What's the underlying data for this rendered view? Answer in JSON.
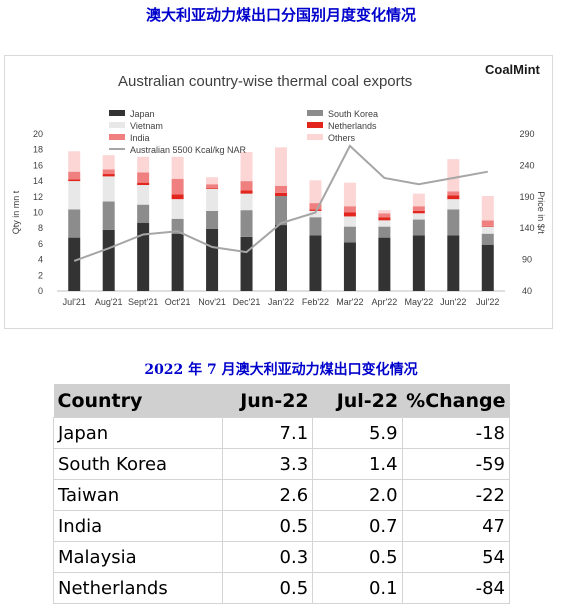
{
  "page": {
    "title": "澳大利亚动力煤出口分国别月度变化情况",
    "table_title": "2022 年 7 月澳大利亚动力煤出口变化情况"
  },
  "chart_data": {
    "type": "bar",
    "stacked": true,
    "title": "Australian country-wise thermal coal exports",
    "brand": "CoalMint",
    "ylabel": "Qty in mn t",
    "y2label": "Price in $/t",
    "ylim": [
      0,
      20
    ],
    "y2lim": [
      40,
      290
    ],
    "yticks": [
      0,
      2,
      4,
      6,
      8,
      10,
      12,
      14,
      16,
      18,
      20
    ],
    "y2ticks": [
      40,
      90,
      140,
      190,
      240,
      290
    ],
    "categories": [
      "Jul'21",
      "Aug'21",
      "Sept'21",
      "Oct'21",
      "Nov'21",
      "Dec'21",
      "Jan'22",
      "Feb'22",
      "Mar'22",
      "Apr'22",
      "May'22",
      "Jun'22",
      "Jul'22"
    ],
    "series": [
      {
        "name": "Japan",
        "color": "#333333",
        "values": [
          6.8,
          7.8,
          8.7,
          7.3,
          7.9,
          6.9,
          8.4,
          7.1,
          6.2,
          6.8,
          7.1,
          7.1,
          5.9
        ]
      },
      {
        "name": "South Korea",
        "color": "#8c8c8c",
        "values": [
          3.6,
          3.6,
          2.3,
          1.9,
          2.3,
          3.4,
          3.7,
          2.3,
          2.0,
          1.4,
          2.0,
          3.3,
          1.4
        ]
      },
      {
        "name": "Vietnam",
        "color": "#e8e8e8",
        "values": [
          3.6,
          3.2,
          2.5,
          2.5,
          2.8,
          2.1,
          0.0,
          0.8,
          1.3,
          0.8,
          0.8,
          1.3,
          0.9
        ]
      },
      {
        "name": "Netherlands",
        "color": "#e2261d",
        "values": [
          0.2,
          0.3,
          0.3,
          0.6,
          0.1,
          0.4,
          0.4,
          0.2,
          0.5,
          0.4,
          0.3,
          0.5,
          0.1
        ]
      },
      {
        "name": "India",
        "color": "#f08080",
        "values": [
          1.0,
          0.6,
          1.3,
          2.0,
          0.5,
          1.2,
          0.9,
          0.8,
          0.8,
          0.5,
          0.6,
          0.5,
          0.7
        ]
      },
      {
        "name": "Others",
        "color": "#fcd5d5",
        "values": [
          2.6,
          1.8,
          2.0,
          2.8,
          0.9,
          3.7,
          4.9,
          2.9,
          3.0,
          0.4,
          1.6,
          4.1,
          3.1
        ]
      }
    ],
    "line": {
      "name": "Australian 5500 Kcal/kg NAR",
      "color": "#a6a6a6",
      "axis": "right",
      "values": [
        88,
        108,
        130,
        135,
        110,
        102,
        148,
        165,
        271,
        220,
        210,
        220,
        230
      ]
    },
    "legend": {
      "left": [
        "Japan",
        "Vietnam",
        "India",
        "Australian 5500 Kcal/kg NAR"
      ],
      "right": [
        "South Korea",
        "Netherlands",
        "Others"
      ]
    }
  },
  "table": {
    "headers": [
      "Country",
      "Jun-22",
      "Jul-22",
      "%Change"
    ],
    "rows": [
      {
        "country": "Japan",
        "jun": "7.1",
        "jul": "5.9",
        "change": "-18"
      },
      {
        "country": "South Korea",
        "jun": "3.3",
        "jul": "1.4",
        "change": "-59"
      },
      {
        "country": "Taiwan",
        "jun": "2.6",
        "jul": "2.0",
        "change": "-22"
      },
      {
        "country": "India",
        "jun": "0.5",
        "jul": "0.7",
        "change": "47"
      },
      {
        "country": "Malaysia",
        "jun": "0.3",
        "jul": "0.5",
        "change": "54"
      },
      {
        "country": "Netherlands",
        "jun": "0.5",
        "jul": "0.1",
        "change": "-84"
      }
    ]
  }
}
